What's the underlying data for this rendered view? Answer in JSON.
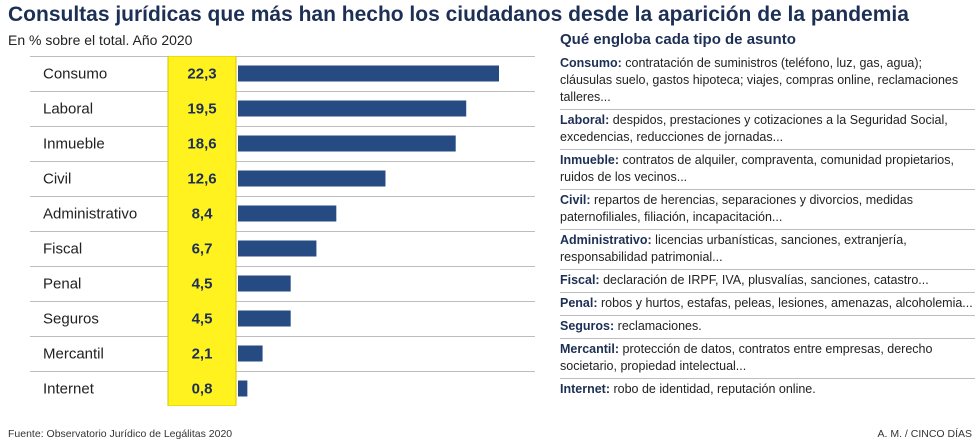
{
  "title": "Consultas jurídicas que más han hecho los ciudadanos desde la aparición de la pandemia",
  "subtitle": "En % sobre el total. Año 2020",
  "colors": {
    "bar": "#254b82",
    "highlight": "#fff21f",
    "highlight_border": "#d6c600",
    "row_line": "#bdbdbd",
    "title": "#1c2f55"
  },
  "chart_data": {
    "type": "bar",
    "orientation": "horizontal",
    "categories": [
      "Consumo",
      "Laboral",
      "Inmueble",
      "Civil",
      "Administrativo",
      "Fiscal",
      "Penal",
      "Seguros",
      "Mercantil",
      "Internet"
    ],
    "values": [
      22.3,
      19.5,
      18.6,
      12.6,
      8.4,
      6.7,
      4.5,
      4.5,
      2.1,
      0.8
    ],
    "value_labels": [
      "22,3",
      "19,5",
      "18,6",
      "12,6",
      "8,4",
      "6,7",
      "4,5",
      "4,5",
      "2,1",
      "0,8"
    ],
    "title": "Consultas jurídicas que más han hecho los ciudadanos desde la aparición de la pandemia",
    "subtitle": "En % sobre el total. Año 2020",
    "xlabel": "",
    "ylabel": "",
    "xlim": [
      0,
      22.3
    ],
    "grid": false,
    "legend": "none"
  },
  "descriptions": {
    "heading": "Qué engloba cada tipo de asunto",
    "items": [
      {
        "term": "Consumo:",
        "text": "contratación de suministros (teléfono, luz, gas, agua); cláusulas suelo, gastos hipoteca; viajes, compras online, reclamaciones talleres..."
      },
      {
        "term": "Laboral:",
        "text": "despidos, prestaciones y cotizaciones a la Seguridad Social, excedencias, reducciones de jornadas..."
      },
      {
        "term": "Inmueble:",
        "text": "contratos de alquiler, compraventa, comunidad propietarios, ruidos de los vecinos..."
      },
      {
        "term": "Civil:",
        "text": "repartos de herencias, separaciones y divorcios, medidas paternofiliales, filiación, incapacitación..."
      },
      {
        "term": "Administrativo:",
        "text": "licencias urbanísticas, sanciones, extranjería, responsabilidad patrimonial..."
      },
      {
        "term": "Fiscal:",
        "text": "declaración de IRPF, IVA, plusvalías, sanciones, catastro..."
      },
      {
        "term": "Penal:",
        "text": "robos y hurtos, estafas, peleas, lesiones, amenazas, alcoholemia..."
      },
      {
        "term": "Seguros:",
        "text": "reclamaciones."
      },
      {
        "term": "Mercantil:",
        "text": "protección de datos, contratos entre empresas, derecho societario, propiedad intelectual..."
      },
      {
        "term": "Internet:",
        "text": "robo de identidad, reputación online."
      }
    ]
  },
  "footer": {
    "source": "Fuente: Observatorio Jurídico de Legálitas 2020",
    "credit": "A. M. / CINCO DÍAS"
  }
}
